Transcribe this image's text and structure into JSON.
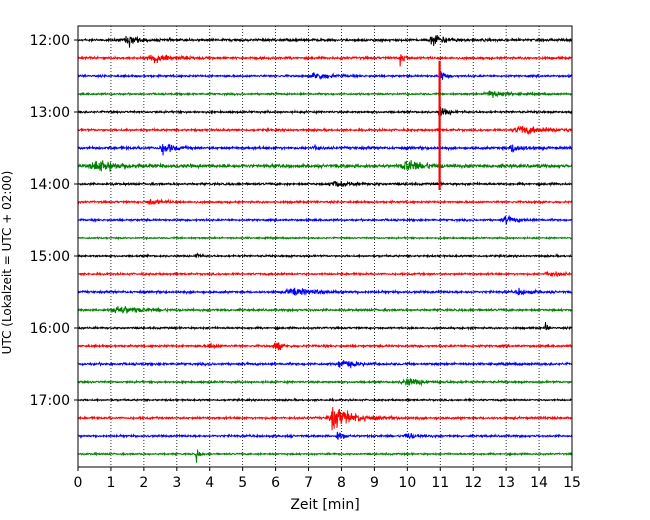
{
  "chart_data": {
    "type": "line",
    "title": "",
    "xlabel": "Zeit  [min]",
    "ylabel": "UTC (Lokalzeit = UTC + 02:00)",
    "xlim": [
      0,
      15
    ],
    "x_ticks": [
      "0",
      "1",
      "2",
      "3",
      "4",
      "5",
      "6",
      "7",
      "8",
      "9",
      "10",
      "11",
      "12",
      "13",
      "14",
      "15"
    ],
    "y_ticks": [
      {
        "label": "12:00",
        "row": 0
      },
      {
        "label": "13:00",
        "row": 4
      },
      {
        "label": "14:00",
        "row": 8
      },
      {
        "label": "15:00",
        "row": 12
      },
      {
        "label": "16:00",
        "row": 16
      },
      {
        "label": "17:00",
        "row": 20
      }
    ],
    "row_interval_min": 15,
    "row_start": "12:00",
    "grid_x": "dotted",
    "colors": [
      "#000000",
      "#ff0000",
      "#0000ff",
      "#008000"
    ],
    "rows": [
      {
        "start": "12:00",
        "color": "#000000",
        "noise": 1.6,
        "events": [
          {
            "t": 1.5,
            "amp": 9,
            "dur": 0.4
          },
          {
            "t": 10.8,
            "amp": 8,
            "dur": 0.6
          }
        ]
      },
      {
        "start": "12:15",
        "color": "#ff0000",
        "noise": 1.5,
        "events": [
          {
            "t": 2.3,
            "amp": 7,
            "dur": 0.8
          },
          {
            "t": 9.8,
            "amp": 13,
            "dur": 0.15
          }
        ]
      },
      {
        "start": "12:30",
        "color": "#0000ff",
        "noise": 1.3,
        "events": [
          {
            "t": 7.2,
            "amp": 6,
            "dur": 0.6
          },
          {
            "t": 11.0,
            "amp": 10,
            "dur": 0.2
          }
        ]
      },
      {
        "start": "12:45",
        "color": "#008000",
        "noise": 1.2,
        "events": [
          {
            "t": 12.5,
            "amp": 6,
            "dur": 0.6
          }
        ]
      },
      {
        "start": "13:00",
        "color": "#000000",
        "noise": 1.3,
        "events": [
          {
            "t": 11.0,
            "amp": 8,
            "dur": 0.3
          }
        ]
      },
      {
        "start": "13:15",
        "color": "#ff0000",
        "noise": 1.4,
        "events": [
          {
            "t": 13.5,
            "amp": 6,
            "dur": 1.2
          }
        ]
      },
      {
        "start": "13:30",
        "color": "#0000ff",
        "noise": 1.8,
        "events": [
          {
            "t": 2.6,
            "amp": 9,
            "dur": 0.4
          },
          {
            "t": 7.2,
            "amp": 11,
            "dur": 0.1
          },
          {
            "t": 13.2,
            "amp": 7,
            "dur": 0.4
          }
        ]
      },
      {
        "start": "13:45",
        "color": "#008000",
        "noise": 2.2,
        "events": [
          {
            "t": 0.6,
            "amp": 8,
            "dur": 1.0
          },
          {
            "t": 10.0,
            "amp": 8,
            "dur": 0.8
          }
        ]
      },
      {
        "start": "14:00",
        "color": "#000000",
        "noise": 1.4,
        "events": [
          {
            "t": 7.8,
            "amp": 5,
            "dur": 0.7
          }
        ]
      },
      {
        "start": "14:15",
        "color": "#ff0000",
        "noise": 1.3,
        "events": [
          {
            "t": 2.2,
            "amp": 4,
            "dur": 0.6
          }
        ]
      },
      {
        "start": "14:30",
        "color": "#0000ff",
        "noise": 1.3,
        "events": [
          {
            "t": 13.0,
            "amp": 5,
            "dur": 0.6
          }
        ]
      },
      {
        "start": "14:45",
        "color": "#008000",
        "noise": 1.0,
        "events": []
      },
      {
        "start": "15:00",
        "color": "#000000",
        "noise": 1.2,
        "events": [
          {
            "t": 3.6,
            "amp": 10,
            "dur": 0.1
          }
        ]
      },
      {
        "start": "15:15",
        "color": "#ff0000",
        "noise": 1.3,
        "events": [
          {
            "t": 14.3,
            "amp": 4,
            "dur": 0.5
          }
        ]
      },
      {
        "start": "15:30",
        "color": "#0000ff",
        "noise": 1.5,
        "events": [
          {
            "t": 6.5,
            "amp": 5,
            "dur": 1.0
          },
          {
            "t": 13.4,
            "amp": 4,
            "dur": 0.5
          }
        ]
      },
      {
        "start": "15:45",
        "color": "#008000",
        "noise": 1.4,
        "events": [
          {
            "t": 1.2,
            "amp": 6,
            "dur": 1.0
          }
        ]
      },
      {
        "start": "16:00",
        "color": "#000000",
        "noise": 1.2,
        "events": [
          {
            "t": 14.2,
            "amp": 8,
            "dur": 0.1
          }
        ]
      },
      {
        "start": "16:15",
        "color": "#ff0000",
        "noise": 1.4,
        "events": [
          {
            "t": 4.0,
            "amp": 6,
            "dur": 0.2
          },
          {
            "t": 6.0,
            "amp": 11,
            "dur": 0.2
          }
        ]
      },
      {
        "start": "16:30",
        "color": "#0000ff",
        "noise": 1.5,
        "events": [
          {
            "t": 8.0,
            "amp": 6,
            "dur": 0.6
          }
        ]
      },
      {
        "start": "16:45",
        "color": "#008000",
        "noise": 1.3,
        "events": [
          {
            "t": 10.0,
            "amp": 5,
            "dur": 0.8
          }
        ]
      },
      {
        "start": "17:00",
        "color": "#000000",
        "noise": 1.1,
        "events": []
      },
      {
        "start": "17:15",
        "color": "#ff0000",
        "noise": 1.4,
        "events": [
          {
            "t": 7.8,
            "amp": 16,
            "dur": 0.9
          }
        ]
      },
      {
        "start": "17:30",
        "color": "#0000ff",
        "noise": 1.4,
        "events": [
          {
            "t": 7.9,
            "amp": 9,
            "dur": 0.2
          },
          {
            "t": 10.0,
            "amp": 5,
            "dur": 0.4
          }
        ]
      },
      {
        "start": "17:45",
        "color": "#008000",
        "noise": 1.1,
        "events": [
          {
            "t": 3.6,
            "amp": 11,
            "dur": 0.1
          }
        ]
      }
    ],
    "spikes": [
      {
        "t": 10.98,
        "from_row": 1,
        "to_row": 8,
        "color": "#ff0000"
      }
    ]
  }
}
